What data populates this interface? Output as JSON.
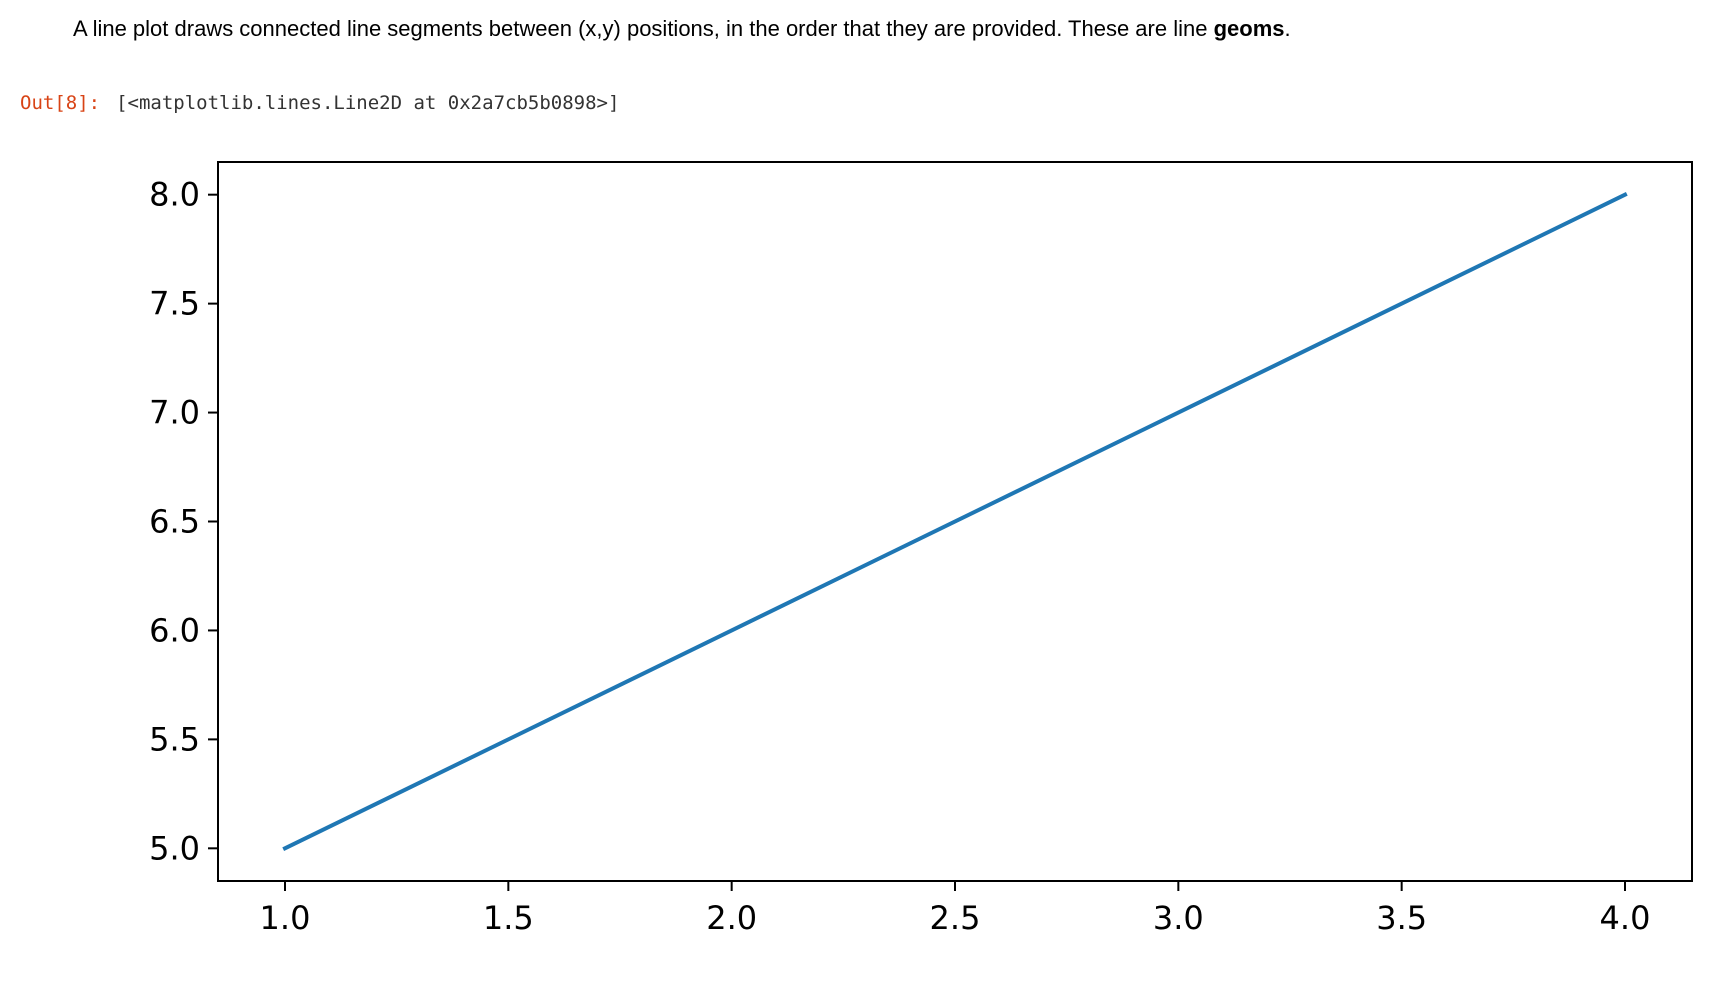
{
  "cell": {
    "intro_text_before": "A line plot draws connected line segments between (x,y) positions, in the order that they are provided. These are line ",
    "intro_bold": "geoms",
    "intro_text_after": ".",
    "out_prompt": "Out[8]:",
    "out_text": "[<matplotlib.lines.Line2D at 0x2a7cb5b0898>]"
  },
  "chart_data": {
    "type": "line",
    "title": "",
    "xlabel": "",
    "ylabel": "",
    "xlim": [
      0.85,
      4.15
    ],
    "ylim": [
      4.85,
      8.15
    ],
    "xticks": [
      1.0,
      1.5,
      2.0,
      2.5,
      3.0,
      3.5,
      4.0
    ],
    "xtick_labels": [
      "1.0",
      "1.5",
      "2.0",
      "2.5",
      "3.0",
      "3.5",
      "4.0"
    ],
    "yticks": [
      5.0,
      5.5,
      6.0,
      6.5,
      7.0,
      7.5,
      8.0
    ],
    "ytick_labels": [
      "5.0",
      "5.5",
      "6.0",
      "6.5",
      "7.0",
      "7.5",
      "8.0"
    ],
    "grid": false,
    "series": [
      {
        "color": "#1f77b4",
        "x": [
          1,
          2,
          3,
          4
        ],
        "y": [
          5,
          6,
          7,
          8
        ]
      }
    ]
  }
}
